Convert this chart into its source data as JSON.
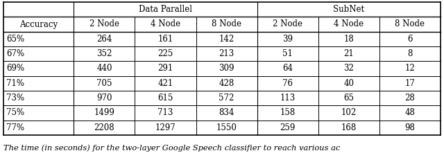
{
  "col_headers_row1": [
    "",
    "Data Parallel",
    "",
    "",
    "SubNet",
    "",
    ""
  ],
  "col_headers_row2": [
    "Accuracy",
    "2 Node",
    "4 Node",
    "8 Node",
    "2 Node",
    "4 Node",
    "8 Node"
  ],
  "rows": [
    [
      "65%",
      "264",
      "161",
      "142",
      "39",
      "18",
      "6"
    ],
    [
      "67%",
      "352",
      "225",
      "213",
      "51",
      "21",
      "8"
    ],
    [
      "69%",
      "440",
      "291",
      "309",
      "64",
      "32",
      "12"
    ],
    [
      "71%",
      "705",
      "421",
      "428",
      "76",
      "40",
      "17"
    ],
    [
      "73%",
      "970",
      "615",
      "572",
      "113",
      "65",
      "28"
    ],
    [
      "75%",
      "1499",
      "713",
      "834",
      "158",
      "102",
      "48"
    ],
    [
      "77%",
      "2208",
      "1297",
      "1550",
      "259",
      "168",
      "98"
    ]
  ],
  "caption": "The time (in seconds) for the two-layer Google Speech classifier to reach various ac",
  "background_color": "#ffffff",
  "text_color": "#000000",
  "font_size": 8.5,
  "caption_font_size": 8.2,
  "col_widths_raw": [
    1.15,
    1.0,
    1.0,
    1.0,
    1.0,
    1.0,
    1.0
  ]
}
